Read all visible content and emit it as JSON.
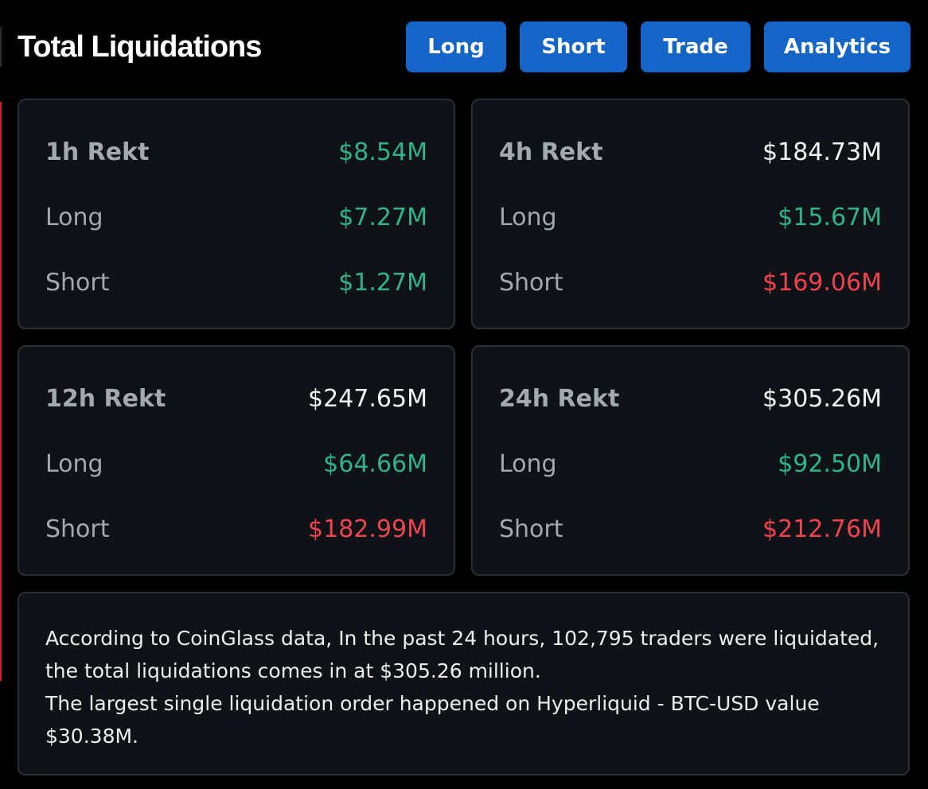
{
  "header": {
    "title": "Total Liquidations",
    "buttons": {
      "long": "Long",
      "short": "Short",
      "trade": "Trade",
      "analytics": "Analytics"
    }
  },
  "colors": {
    "accent_button": "#1565c8",
    "positive": "#2fb38a",
    "negative": "#f0434e",
    "background": "#000000",
    "card": "#0f1217"
  },
  "cards": [
    {
      "title": "1h Rekt",
      "total": "$8.54M",
      "long_label": "Long",
      "long_value": "$7.27M",
      "short_label": "Short",
      "short_value": "$1.27M"
    },
    {
      "title": "4h Rekt",
      "total": "$184.73M",
      "long_label": "Long",
      "long_value": "$15.67M",
      "short_label": "Short",
      "short_value": "$169.06M"
    },
    {
      "title": "12h Rekt",
      "total": "$247.65M",
      "long_label": "Long",
      "long_value": "$64.66M",
      "short_label": "Short",
      "short_value": "$182.99M"
    },
    {
      "title": "24h Rekt",
      "total": "$305.26M",
      "long_label": "Long",
      "long_value": "$92.50M",
      "short_label": "Short",
      "short_value": "$212.76M"
    }
  ],
  "summary": {
    "line1": "According to CoinGlass data, In the past 24 hours, 102,795 traders were liquidated, the total liquidations comes in at $305.26 million.",
    "line2": "The largest single liquidation order happened on Hyperliquid - BTC-USD value $30.38M."
  }
}
